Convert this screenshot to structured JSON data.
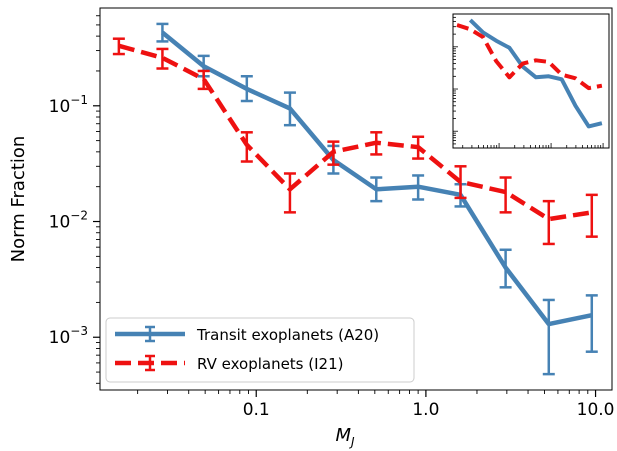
{
  "chart_data": {
    "type": "line",
    "xscale": "log",
    "yscale": "log",
    "xlim": [
      0.012,
      12.5
    ],
    "ylim": [
      0.00035,
      0.7
    ],
    "xlabel_main": "M",
    "xlabel_sub": "J",
    "ylabel": "Norm Fraction",
    "x_ticks": [
      {
        "value": 0.1,
        "label": "0.1"
      },
      {
        "value": 1.0,
        "label": "1.0"
      },
      {
        "value": 10.0,
        "label": "10.0"
      }
    ],
    "y_ticks": [
      {
        "value": 0.001,
        "base": "10",
        "exp": "−3"
      },
      {
        "value": 0.01,
        "base": "10",
        "exp": "−2"
      },
      {
        "value": 0.1,
        "base": "10",
        "exp": "−1"
      }
    ],
    "legend_position": "lower-left",
    "series": [
      {
        "name": "Transit exoplanets (A20)",
        "color": "#4682b4",
        "style": "solid",
        "x": [
          0.028,
          0.049,
          0.088,
          0.158,
          0.285,
          0.51,
          0.9,
          1.6,
          2.95,
          5.3,
          9.5
        ],
        "y": [
          0.43,
          0.22,
          0.14,
          0.095,
          0.034,
          0.019,
          0.02,
          0.017,
          0.004,
          0.0013,
          0.00155
        ],
        "err_low": [
          0.36,
          0.18,
          0.11,
          0.068,
          0.026,
          0.015,
          0.0155,
          0.0135,
          0.0027,
          0.00048,
          0.00075
        ],
        "err_high": [
          0.51,
          0.27,
          0.18,
          0.13,
          0.045,
          0.024,
          0.025,
          0.021,
          0.0057,
          0.0021,
          0.0023
        ]
      },
      {
        "name": "RV exoplanets (I21)",
        "color": "#ee1111",
        "style": "dashed",
        "x": [
          0.0155,
          0.028,
          0.049,
          0.088,
          0.158,
          0.285,
          0.51,
          0.9,
          1.6,
          2.95,
          5.3,
          9.5
        ],
        "y": [
          0.33,
          0.26,
          0.17,
          0.046,
          0.019,
          0.04,
          0.048,
          0.044,
          0.022,
          0.018,
          0.0105,
          0.012
        ],
        "err_low": [
          0.28,
          0.21,
          0.14,
          0.033,
          0.012,
          0.031,
          0.038,
          0.035,
          0.016,
          0.012,
          0.0064,
          0.0074
        ],
        "err_high": [
          0.38,
          0.31,
          0.2,
          0.059,
          0.026,
          0.049,
          0.059,
          0.054,
          0.03,
          0.024,
          0.015,
          0.017
        ]
      }
    ],
    "inset": {
      "xscale": "log",
      "yscale": "log",
      "xlim": [
        0.013,
        13
      ],
      "ylim": [
        0.0004,
        0.6
      ],
      "series": [
        {
          "color": "#4682b4",
          "style": "solid",
          "x": [
            0.028,
            0.049,
            0.088,
            0.158,
            0.285,
            0.51,
            0.9,
            1.6,
            2.95,
            5.3,
            9.5
          ],
          "y": [
            0.43,
            0.22,
            0.14,
            0.095,
            0.034,
            0.019,
            0.02,
            0.017,
            0.004,
            0.0013,
            0.00155
          ]
        },
        {
          "color": "#ee1111",
          "style": "dashed",
          "x": [
            0.0155,
            0.028,
            0.049,
            0.088,
            0.158,
            0.285,
            0.51,
            0.9,
            1.6,
            2.95,
            5.3,
            9.5
          ],
          "y": [
            0.33,
            0.26,
            0.17,
            0.046,
            0.019,
            0.04,
            0.048,
            0.044,
            0.022,
            0.018,
            0.0105,
            0.012
          ]
        }
      ]
    }
  }
}
